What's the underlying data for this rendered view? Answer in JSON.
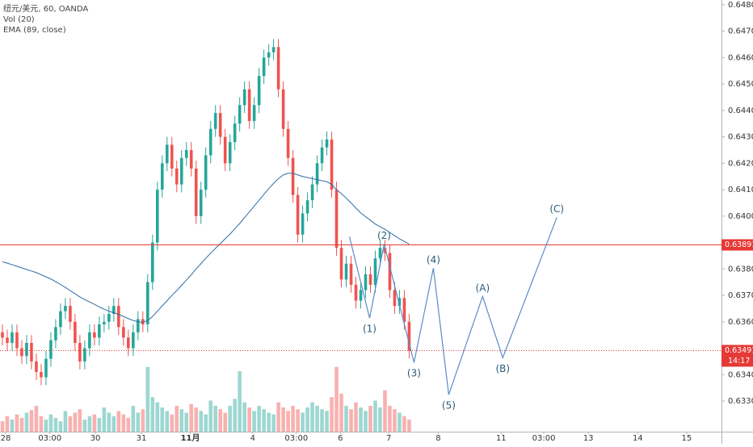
{
  "chart_data": {
    "type": "candlestick",
    "header": [
      "纽元/美元, 60, OANDA",
      "Vol (20)",
      "EMA (89, close)"
    ],
    "ylim": [
      0.63184,
      0.64818
    ],
    "yticks": [
      {
        "value": 0.648,
        "label": "0.64800"
      },
      {
        "value": 0.647,
        "label": "0.64700"
      },
      {
        "value": 0.646,
        "label": "0.64600"
      },
      {
        "value": 0.645,
        "label": "0.64500"
      },
      {
        "value": 0.644,
        "label": "0.64400"
      },
      {
        "value": 0.643,
        "label": "0.64300"
      },
      {
        "value": 0.642,
        "label": "0.64200"
      },
      {
        "value": 0.641,
        "label": "0.64100"
      },
      {
        "value": 0.64,
        "label": "0.64000"
      },
      {
        "value": 0.639,
        "label": "0.63900"
      },
      {
        "value": 0.638,
        "label": "0.63800"
      },
      {
        "value": 0.637,
        "label": "0.63700"
      },
      {
        "value": 0.636,
        "label": "0.63600"
      },
      {
        "value": 0.635,
        "label": "0.63500"
      },
      {
        "value": 0.634,
        "label": "0.63400"
      },
      {
        "value": 0.633,
        "label": "0.63300"
      }
    ],
    "xlim": [
      -0.5,
      148.5
    ],
    "xticks": [
      {
        "value": 0.67,
        "label": "28"
      },
      {
        "value": 9.8,
        "label": "03:00"
      },
      {
        "value": 19.2,
        "label": "30"
      },
      {
        "value": 28.7,
        "label": "31"
      },
      {
        "value": 38.8,
        "label": "11月"
      },
      {
        "value": 51.7,
        "label": "4"
      },
      {
        "value": 60.7,
        "label": "03:00"
      },
      {
        "value": 69.8,
        "label": "6"
      },
      {
        "value": 79.8,
        "label": "7"
      },
      {
        "value": 90,
        "label": "8"
      },
      {
        "value": 103,
        "label": "11"
      },
      {
        "value": 111.8,
        "label": "03:00"
      },
      {
        "value": 121,
        "label": "13"
      },
      {
        "value": 131.2,
        "label": "14"
      },
      {
        "value": 141.3,
        "label": "15"
      }
    ],
    "up_color": "#26a69a",
    "down_color": "#ef5350",
    "open": [
      0.6356,
      0.6354,
      0.6352,
      0.6356,
      0.635,
      0.6347,
      0.6352,
      0.6345,
      0.6341,
      0.6339,
      0.6346,
      0.6353,
      0.6358,
      0.6364,
      0.6366,
      0.636,
      0.6352,
      0.6345,
      0.635,
      0.6356,
      0.6354,
      0.6359,
      0.636,
      0.6363,
      0.6366,
      0.6358,
      0.6354,
      0.635,
      0.6356,
      0.6361,
      0.6359,
      0.6375,
      0.639,
      0.641,
      0.642,
      0.6427,
      0.6418,
      0.6412,
      0.6422,
      0.6425,
      0.6418,
      0.64,
      0.641,
      0.6423,
      0.6433,
      0.6439,
      0.643,
      0.642,
      0.6428,
      0.6435,
      0.6442,
      0.6448,
      0.6436,
      0.6442,
      0.6453,
      0.646,
      0.6462,
      0.6464,
      0.6448,
      0.6433,
      0.6422,
      0.6408,
      0.6393,
      0.6401,
      0.6406,
      0.6412,
      0.642,
      0.6426,
      0.6429,
      0.641,
      0.6388,
      0.6376,
      0.6382,
      0.6374,
      0.6368,
      0.6372,
      0.6378,
      0.6374,
      0.6384,
      0.6388,
      0.6386,
      0.6372,
      0.6366,
      0.6369,
      0.636
    ],
    "high": [
      0.6359,
      0.6357,
      0.6359,
      0.6359,
      0.6353,
      0.6355,
      0.6355,
      0.6348,
      0.6344,
      0.6349,
      0.6356,
      0.6361,
      0.6367,
      0.6369,
      0.6369,
      0.6363,
      0.6355,
      0.6353,
      0.6359,
      0.6359,
      0.6362,
      0.6363,
      0.6366,
      0.6369,
      0.6369,
      0.6361,
      0.6357,
      0.6359,
      0.6364,
      0.6364,
      0.6378,
      0.6393,
      0.6413,
      0.6423,
      0.643,
      0.643,
      0.6421,
      0.6425,
      0.6428,
      0.6428,
      0.6421,
      0.6413,
      0.6426,
      0.6436,
      0.6442,
      0.6442,
      0.6433,
      0.6431,
      0.6438,
      0.6445,
      0.6451,
      0.6451,
      0.6445,
      0.6456,
      0.6463,
      0.6465,
      0.6467,
      0.6467,
      0.6451,
      0.6436,
      0.6425,
      0.6411,
      0.6404,
      0.6409,
      0.6415,
      0.6423,
      0.6429,
      0.6432,
      0.6432,
      0.6413,
      0.6391,
      0.6385,
      0.6385,
      0.6377,
      0.6375,
      0.6381,
      0.6381,
      0.6387,
      0.6391,
      0.6391,
      0.6389,
      0.6375,
      0.6372,
      0.6372,
      0.6363
    ],
    "low": [
      0.6351,
      0.6349,
      0.6349,
      0.6347,
      0.6344,
      0.6344,
      0.6342,
      0.6338,
      0.6336,
      0.6336,
      0.6343,
      0.635,
      0.6355,
      0.6361,
      0.6357,
      0.6349,
      0.6342,
      0.6342,
      0.6347,
      0.6351,
      0.6351,
      0.6356,
      0.6357,
      0.636,
      0.6355,
      0.6351,
      0.6347,
      0.6347,
      0.6353,
      0.6356,
      0.6356,
      0.6372,
      0.6387,
      0.6407,
      0.6417,
      0.6415,
      0.6409,
      0.6409,
      0.6419,
      0.6415,
      0.6397,
      0.6397,
      0.6407,
      0.642,
      0.643,
      0.6427,
      0.6417,
      0.6417,
      0.6425,
      0.6432,
      0.6439,
      0.6433,
      0.6433,
      0.6439,
      0.645,
      0.6457,
      0.6459,
      0.6445,
      0.643,
      0.6419,
      0.6405,
      0.639,
      0.639,
      0.6398,
      0.6403,
      0.6409,
      0.6417,
      0.6423,
      0.6407,
      0.6385,
      0.6373,
      0.6373,
      0.6371,
      0.6365,
      0.6365,
      0.6369,
      0.6371,
      0.6371,
      0.6381,
      0.6383,
      0.6369,
      0.6363,
      0.6363,
      0.6357,
      0.63461
    ],
    "close": [
      0.6354,
      0.6352,
      0.6356,
      0.635,
      0.6347,
      0.6352,
      0.6345,
      0.6341,
      0.6339,
      0.6346,
      0.6353,
      0.6358,
      0.6364,
      0.6366,
      0.636,
      0.6352,
      0.6345,
      0.635,
      0.6356,
      0.6354,
      0.6359,
      0.636,
      0.6363,
      0.6366,
      0.6358,
      0.6354,
      0.635,
      0.6356,
      0.6361,
      0.6359,
      0.6375,
      0.639,
      0.641,
      0.642,
      0.6427,
      0.6418,
      0.6412,
      0.6422,
      0.6425,
      0.6418,
      0.64,
      0.641,
      0.6423,
      0.6433,
      0.6439,
      0.643,
      0.642,
      0.6428,
      0.6435,
      0.6442,
      0.6448,
      0.6436,
      0.6442,
      0.6453,
      0.646,
      0.6462,
      0.6464,
      0.6448,
      0.6433,
      0.6422,
      0.6408,
      0.6393,
      0.6401,
      0.6406,
      0.6412,
      0.642,
      0.6426,
      0.6429,
      0.641,
      0.6388,
      0.6376,
      0.6382,
      0.6374,
      0.6368,
      0.6372,
      0.6378,
      0.6374,
      0.6384,
      0.6388,
      0.6386,
      0.6372,
      0.6366,
      0.6369,
      0.636,
      0.63491
    ],
    "volume": [
      12,
      18,
      14,
      20,
      16,
      22,
      25,
      30,
      18,
      14,
      20,
      16,
      12,
      24,
      18,
      22,
      26,
      14,
      18,
      20,
      16,
      28,
      22,
      18,
      24,
      20,
      16,
      30,
      22,
      26,
      75,
      40,
      34,
      28,
      24,
      20,
      30,
      26,
      22,
      32,
      28,
      24,
      20,
      36,
      30,
      26,
      22,
      30,
      38,
      70,
      34,
      28,
      24,
      30,
      26,
      22,
      20,
      34,
      28,
      24,
      30,
      26,
      22,
      28,
      34,
      30,
      26,
      24,
      40,
      75,
      44,
      30,
      26,
      34,
      28,
      24,
      30,
      36,
      28,
      48,
      30,
      26,
      22,
      18,
      14
    ],
    "volume_lim": [
      0,
      500
    ],
    "ema": [
      0.63827,
      0.63822,
      0.63816,
      0.6381,
      0.63804,
      0.63798,
      0.63792,
      0.63786,
      0.63778,
      0.6377,
      0.63762,
      0.63752,
      0.63741,
      0.6373,
      0.63718,
      0.63706,
      0.63694,
      0.63684,
      0.63675,
      0.63666,
      0.63656,
      0.63648,
      0.6364,
      0.63634,
      0.63628,
      0.6362,
      0.63612,
      0.63605,
      0.636,
      0.63598,
      0.63605,
      0.6362,
      0.6364,
      0.6366,
      0.6368,
      0.637,
      0.63718,
      0.63738,
      0.63758,
      0.63778,
      0.638,
      0.6382,
      0.6384,
      0.6386,
      0.63878,
      0.63896,
      0.63914,
      0.63932,
      0.63952,
      0.63972,
      0.63994,
      0.64016,
      0.64038,
      0.6406,
      0.64082,
      0.64104,
      0.64124,
      0.64142,
      0.64156,
      0.64162,
      0.64162,
      0.64156,
      0.6415,
      0.64146,
      0.64142,
      0.64138,
      0.64134,
      0.6413,
      0.6412,
      0.641,
      0.64085,
      0.64068,
      0.6405,
      0.6403,
      0.64012,
      0.63998,
      0.63984,
      0.6397,
      0.6396,
      0.6395,
      0.63938,
      0.63926,
      0.63914,
      0.63904,
      0.63894
    ],
    "ema_color": "#2e6da4",
    "wave": {
      "color": "#5b8bc9",
      "x": [
        71.67,
        75.83,
        78.83,
        85,
        89,
        92.17,
        99.17,
        103.33,
        114.5
      ],
      "y": [
        0.63922,
        0.63614,
        0.63894,
        0.63446,
        0.63803,
        0.63324,
        0.63696,
        0.63464,
        0.63995
      ],
      "labels": [
        null,
        "(1)",
        "(2)",
        "(3)",
        "(4)",
        "(5)",
        "(A)",
        "(B)",
        "(C)"
      ]
    },
    "line_color": "#e53935",
    "price_line": 0.63891,
    "last_price": 0.63491,
    "countdown": "14:17"
  }
}
